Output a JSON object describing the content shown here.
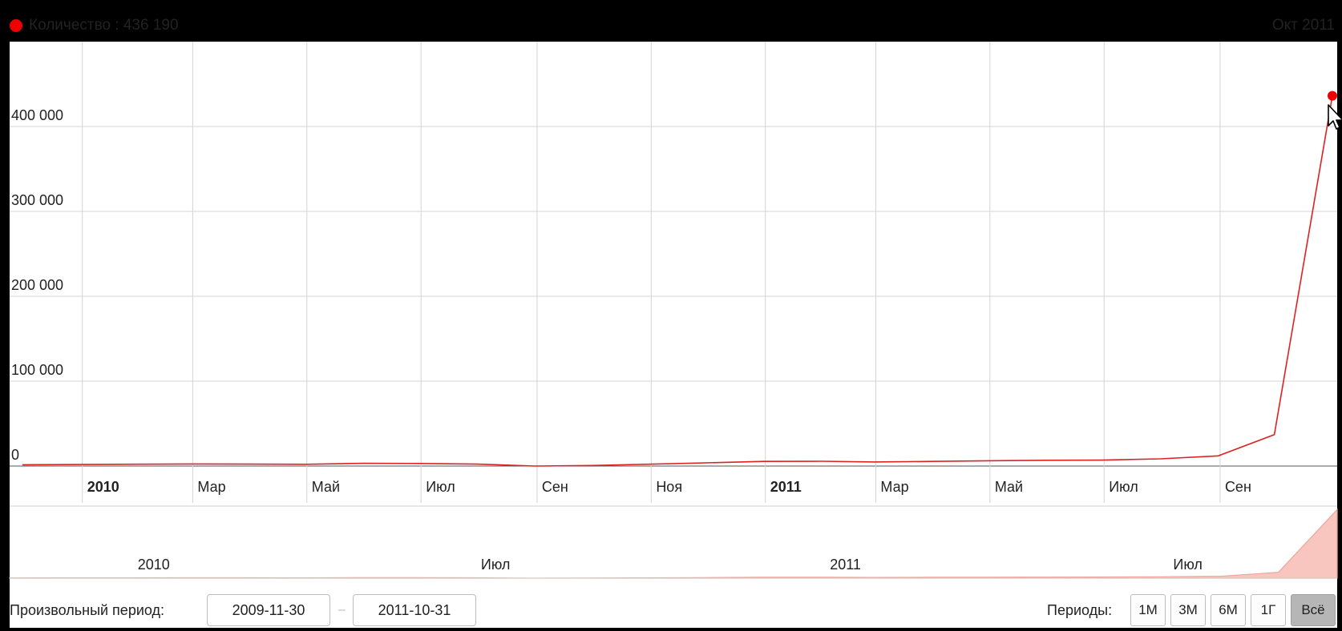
{
  "legend": {
    "label": "Количество : 436 190",
    "dot_color": "#ee0000"
  },
  "tooltip_date": "Окт 2011",
  "chart_data": {
    "type": "line",
    "title": "",
    "xlabel": "",
    "ylabel": "",
    "line_color": "#dd2222",
    "grid": true,
    "ylim": [
      0,
      500000
    ],
    "y_ticks": [
      {
        "value": 0,
        "label": "0"
      },
      {
        "value": 100000,
        "label": "100 000"
      },
      {
        "value": 200000,
        "label": "200 000"
      },
      {
        "value": 300000,
        "label": "300 000"
      },
      {
        "value": 400000,
        "label": "400 000"
      }
    ],
    "x_range": [
      "2009-11-30",
      "2011-10-31"
    ],
    "x_ticks": [
      {
        "date": "2010-01-01",
        "label": "2010",
        "bold": true
      },
      {
        "date": "2010-03-01",
        "label": "Мар",
        "bold": false
      },
      {
        "date": "2010-05-01",
        "label": "Май",
        "bold": false
      },
      {
        "date": "2010-07-01",
        "label": "Июл",
        "bold": false
      },
      {
        "date": "2010-09-01",
        "label": "Сен",
        "bold": false
      },
      {
        "date": "2010-11-01",
        "label": "Ноя",
        "bold": false
      },
      {
        "date": "2011-01-01",
        "label": "2011",
        "bold": true
      },
      {
        "date": "2011-03-01",
        "label": "Мар",
        "bold": false
      },
      {
        "date": "2011-05-01",
        "label": "Май",
        "bold": false
      },
      {
        "date": "2011-07-01",
        "label": "Июл",
        "bold": false
      },
      {
        "date": "2011-09-01",
        "label": "Сен",
        "bold": false
      }
    ],
    "series": [
      {
        "points": [
          {
            "x": "2009-11-30",
            "y": 1500
          },
          {
            "x": "2009-12-31",
            "y": 1800
          },
          {
            "x": "2010-01-31",
            "y": 2200
          },
          {
            "x": "2010-02-28",
            "y": 2500
          },
          {
            "x": "2010-03-31",
            "y": 2300
          },
          {
            "x": "2010-04-30",
            "y": 2100
          },
          {
            "x": "2010-05-31",
            "y": 3200
          },
          {
            "x": "2010-06-30",
            "y": 3000
          },
          {
            "x": "2010-07-31",
            "y": 2300
          },
          {
            "x": "2010-08-31",
            "y": 0
          },
          {
            "x": "2010-09-30",
            "y": 700
          },
          {
            "x": "2010-10-31",
            "y": 2200
          },
          {
            "x": "2010-11-30",
            "y": 3800
          },
          {
            "x": "2010-12-31",
            "y": 5500
          },
          {
            "x": "2011-01-31",
            "y": 5700
          },
          {
            "x": "2011-02-28",
            "y": 4800
          },
          {
            "x": "2011-03-31",
            "y": 5500
          },
          {
            "x": "2011-04-30",
            "y": 6200
          },
          {
            "x": "2011-05-31",
            "y": 6800
          },
          {
            "x": "2011-06-30",
            "y": 7000
          },
          {
            "x": "2011-07-31",
            "y": 8500
          },
          {
            "x": "2011-08-31",
            "y": 12000
          },
          {
            "x": "2011-09-30",
            "y": 37000
          },
          {
            "x": "2011-10-31",
            "y": 436190
          }
        ]
      }
    ],
    "navigator": {
      "ticks": [
        {
          "date": "2010-01-01",
          "label": "2010"
        },
        {
          "date": "2010-07-01",
          "label": "Июл"
        },
        {
          "date": "2011-01-01",
          "label": "2011"
        },
        {
          "date": "2011-07-01",
          "label": "Июл"
        }
      ],
      "fill_color": "#f9c6bf",
      "line_color": "#f0a39a"
    }
  },
  "controls": {
    "custom_period_label": "Произвольный период:",
    "date_from": "2009-11-30",
    "date_separator": "–",
    "date_to": "2011-10-31",
    "periods_label": "Периоды:",
    "period_buttons": [
      {
        "label": "1М",
        "active": false
      },
      {
        "label": "3М",
        "active": false
      },
      {
        "label": "6М",
        "active": false
      },
      {
        "label": "1Г",
        "active": false
      },
      {
        "label": "Всё",
        "active": true
      }
    ]
  }
}
